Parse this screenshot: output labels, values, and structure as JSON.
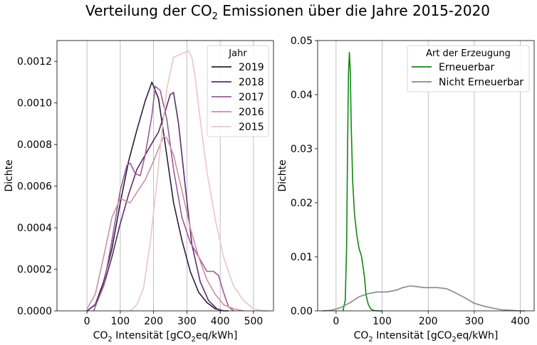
{
  "figure": {
    "title_pre": "Verteilung der CO",
    "title_sub": "2",
    "title_post": " Emissionen über die Jahre 2015-2020"
  },
  "chart_data": [
    {
      "type": "line",
      "subtype": "kde",
      "xlabel_pre": "CO",
      "xlabel_sub": "2",
      "xlabel_mid": " Intensität [gCO",
      "xlabel_sub2": "2",
      "xlabel_post": "eq/kWh]",
      "ylabel": "Dichte",
      "xlim": [
        -90,
        560
      ],
      "ylim": [
        0,
        0.0013
      ],
      "xticks": [
        0,
        100,
        200,
        300,
        400,
        500
      ],
      "xtick_labels": [
        "0",
        "100",
        "200",
        "300",
        "400",
        "500"
      ],
      "yticks": [
        0,
        0.0002,
        0.0004,
        0.0006,
        0.0008,
        0.001,
        0.0012
      ],
      "ytick_labels": [
        "0.0000",
        "0.0002",
        "0.0004",
        "0.0006",
        "0.0008",
        "0.0010",
        "0.0012"
      ],
      "grid": "vertical",
      "legend": {
        "title": "Jahr",
        "placement": "top-right"
      },
      "series": [
        {
          "name": "2019",
          "color": "#2d1e3e",
          "x": [
            0,
            25,
            50,
            75,
            100,
            125,
            150,
            175,
            195,
            215,
            235,
            260,
            285,
            310,
            335,
            360,
            385,
            410,
            425
          ],
          "y": [
            0,
            3e-05,
            0.00014,
            0.0003,
            0.00052,
            0.00072,
            0.00087,
            0.00101,
            0.0011,
            0.00102,
            0.0008,
            0.00052,
            0.00034,
            0.00019,
            9e-05,
            4e-05,
            1e-05,
            0,
            0
          ]
        },
        {
          "name": "2018",
          "color": "#5e2d6b",
          "x": [
            0,
            25,
            50,
            75,
            100,
            125,
            150,
            175,
            200,
            215,
            235,
            250,
            260,
            275,
            295,
            315,
            340,
            365,
            390,
            410
          ],
          "y": [
            0,
            3e-05,
            0.00012,
            0.00026,
            0.00042,
            0.00056,
            0.00068,
            0.00075,
            0.00082,
            0.00086,
            0.00096,
            0.00104,
            0.00105,
            0.0009,
            0.0006,
            0.00032,
            0.00014,
            5e-05,
            1e-05,
            0
          ]
        },
        {
          "name": "2017",
          "color": "#9c5a95",
          "x": [
            20,
            50,
            75,
            100,
            120,
            130,
            145,
            160,
            175,
            195,
            205,
            220,
            240,
            260,
            285,
            310,
            335,
            360,
            380,
            395,
            410,
            425,
            440
          ],
          "y": [
            0,
            0.00012,
            0.00034,
            0.00058,
            0.0007,
            0.00071,
            0.00066,
            0.00065,
            0.00075,
            0.00094,
            0.00108,
            0.00106,
            0.00092,
            0.00068,
            0.00045,
            0.00033,
            0.00026,
            0.00019,
            0.00019,
            0.00017,
            9e-05,
            2e-05,
            0
          ]
        },
        {
          "name": "2016",
          "color": "#cc8ea5",
          "x": [
            0,
            25,
            50,
            75,
            100,
            115,
            130,
            150,
            175,
            200,
            230,
            240,
            260,
            285,
            310,
            335,
            360,
            385,
            410,
            440,
            470
          ],
          "y": [
            1e-05,
            8e-05,
            0.00026,
            0.00045,
            0.00054,
            0.00053,
            0.00052,
            0.00057,
            0.00063,
            0.00072,
            0.00084,
            0.00083,
            0.00075,
            0.00058,
            0.0004,
            0.00026,
            0.00015,
            8e-05,
            3e-05,
            1e-05,
            0
          ]
        },
        {
          "name": "2015",
          "color": "#ecc6c6",
          "x": [
            130,
            150,
            170,
            190,
            210,
            225,
            240,
            260,
            275,
            290,
            305,
            315,
            325,
            340,
            360,
            385,
            410,
            440,
            470,
            500,
            530,
            545
          ],
          "y": [
            0,
            3e-05,
            0.00011,
            0.00033,
            0.00062,
            0.00086,
            0.00107,
            0.00122,
            0.00123,
            0.00124,
            0.00125,
            0.00122,
            0.00112,
            0.00092,
            0.00067,
            0.00044,
            0.00026,
            0.00012,
            5e-05,
            1e-05,
            0,
            0
          ]
        }
      ]
    },
    {
      "type": "line",
      "subtype": "kde",
      "xlabel_pre": "CO",
      "xlabel_sub": "2",
      "xlabel_mid": " Intensität [gCO",
      "xlabel_sub2": "2",
      "xlabel_post": "eq/kWh]",
      "ylabel": "Dichte",
      "xlim": [
        -40,
        430
      ],
      "ylim": [
        0,
        0.05
      ],
      "xticks": [
        0,
        100,
        200,
        300,
        400
      ],
      "xtick_labels": [
        "0",
        "100",
        "200",
        "300",
        "400"
      ],
      "yticks": [
        0,
        0.01,
        0.02,
        0.03,
        0.04,
        0.05
      ],
      "ytick_labels": [
        "0.00",
        "0.01",
        "0.02",
        "0.03",
        "0.04",
        "0.05"
      ],
      "grid": "vertical",
      "legend": {
        "title": "Art der Erzeugung",
        "placement": "top-right"
      },
      "series": [
        {
          "name": "Erneuerbar",
          "color": "#118811",
          "x": [
            15,
            20,
            23,
            25,
            27,
            29,
            31,
            33,
            36,
            40,
            45,
            50,
            55,
            58,
            62,
            65,
            70,
            75,
            80,
            90,
            100
          ],
          "y": [
            0,
            0.002,
            0.012,
            0.03,
            0.044,
            0.0478,
            0.044,
            0.034,
            0.024,
            0.018,
            0.014,
            0.0115,
            0.0102,
            0.0085,
            0.006,
            0.003,
            0.0012,
            0.0004,
            0.0001,
            0,
            0
          ]
        },
        {
          "name": "Nicht Erneuerbar",
          "color": "#888888",
          "x": [
            -30,
            -10,
            10,
            30,
            50,
            70,
            90,
            110,
            130,
            145,
            160,
            175,
            190,
            205,
            220,
            240,
            260,
            280,
            300,
            320,
            340,
            360,
            380,
            400,
            410
          ],
          "y": [
            0,
            0.0001,
            0.0006,
            0.0015,
            0.0026,
            0.0032,
            0.0035,
            0.0035,
            0.0038,
            0.0043,
            0.0046,
            0.0045,
            0.0043,
            0.0043,
            0.0043,
            0.0041,
            0.0033,
            0.0024,
            0.0014,
            0.0009,
            0.0005,
            0.0002,
            0.0001,
            0,
            0
          ]
        }
      ]
    }
  ]
}
